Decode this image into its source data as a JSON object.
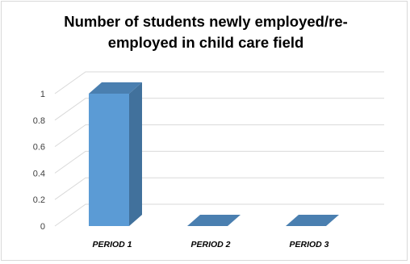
{
  "chart_data": {
    "type": "bar",
    "title": "Number of students newly employed/re-employed in child care field",
    "categories": [
      "PERIOD 1",
      "PERIOD 2",
      "PERIOD 3"
    ],
    "values": [
      1,
      0,
      0
    ],
    "ylim": [
      0,
      1
    ],
    "yticks": [
      "0",
      "0.2",
      "0.4",
      "0.6",
      "0.8",
      "1"
    ],
    "xlabel": "",
    "ylabel": "",
    "grid": true,
    "style": "3d-column",
    "colors": {
      "bar_front": "#5b9bd5",
      "bar_side": "#41719c",
      "bar_top": "#4a7fb0",
      "grid": "#d9d9d9"
    }
  }
}
